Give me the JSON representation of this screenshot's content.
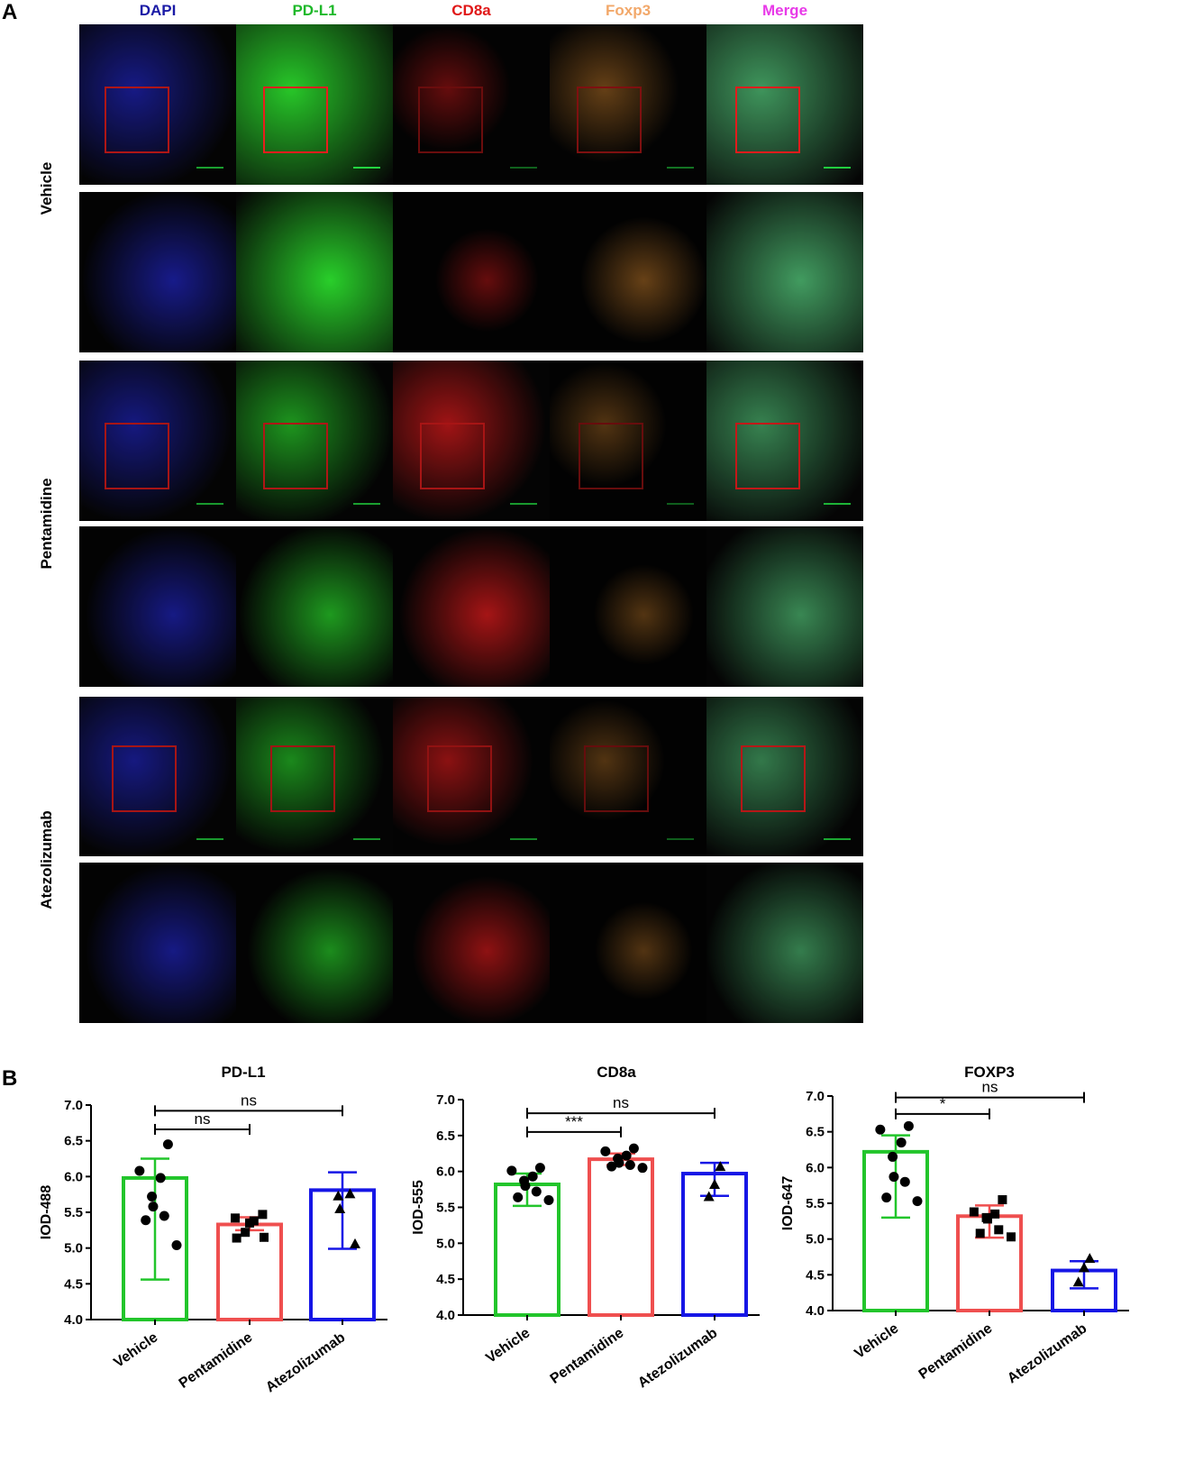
{
  "panel_a": {
    "letter": "A",
    "columns": [
      {
        "label": "DAPI",
        "color": "#1a1aa6"
      },
      {
        "label": "PD-L1",
        "color": "#1fb82a"
      },
      {
        "label": "CD8a",
        "color": "#e01818"
      },
      {
        "label": "Foxp3",
        "color": "#f2a86a"
      },
      {
        "label": "Merge",
        "color": "#e83ae8"
      }
    ],
    "rows": [
      {
        "label": "Vehicle"
      },
      {
        "label": "Pentamidine"
      },
      {
        "label": "Atezolizumab"
      }
    ]
  },
  "panel_b": {
    "letter": "B",
    "colors": {
      "Vehicle": "#22c52b",
      "Pentamidine": "#ef4f4f",
      "Atezolizumab": "#1616e6"
    }
  },
  "chart_data": [
    {
      "type": "bar",
      "title": "PD-L1",
      "ylabel": "IOD-488",
      "xlabel": "",
      "categories": [
        "Vehicle",
        "Pentamidine",
        "Atezolizumab"
      ],
      "values": [
        5.98,
        5.33,
        5.81
      ],
      "errors": [
        [
          4.56,
          6.25
        ],
        [
          5.25,
          5.43
        ],
        [
          4.99,
          6.06
        ]
      ],
      "markers": [
        "circle",
        "square",
        "triangle"
      ],
      "points": [
        [
          6.45,
          6.08,
          5.98,
          5.72,
          5.58,
          5.45,
          5.39,
          5.04
        ],
        [
          5.47,
          5.42,
          5.38,
          5.35,
          5.22,
          5.15,
          5.14
        ],
        [
          5.76,
          5.73,
          5.55,
          5.06
        ]
      ],
      "ylim": [
        4.0,
        7.0
      ],
      "yticks": [
        "4.0",
        "4.5",
        "5.0",
        "5.5",
        "6.0",
        "6.5",
        "7.0"
      ],
      "comparisons": [
        {
          "from": 0,
          "to": 1,
          "label": "ns",
          "y": 6.66
        },
        {
          "from": 0,
          "to": 2,
          "label": "ns",
          "y": 6.92
        }
      ]
    },
    {
      "type": "bar",
      "title": "CD8a",
      "ylabel": "IOD-555",
      "xlabel": "",
      "categories": [
        "Vehicle",
        "Pentamidine",
        "Atezolizumab"
      ],
      "values": [
        5.82,
        6.17,
        5.97
      ],
      "errors": [
        [
          5.52,
          5.97
        ],
        [
          6.09,
          6.25
        ],
        [
          5.66,
          6.12
        ]
      ],
      "markers": [
        "circle",
        "circle",
        "triangle"
      ],
      "points": [
        [
          6.05,
          6.01,
          5.93,
          5.87,
          5.8,
          5.72,
          5.64,
          5.6
        ],
        [
          6.32,
          6.28,
          6.22,
          6.18,
          6.12,
          6.09,
          6.07,
          6.05
        ],
        [
          6.07,
          5.82,
          5.65
        ]
      ],
      "ylim": [
        4.0,
        7.0
      ],
      "yticks": [
        "4.0",
        "4.5",
        "5.0",
        "5.5",
        "6.0",
        "6.5",
        "7.0"
      ],
      "comparisons": [
        {
          "from": 0,
          "to": 1,
          "label": "***",
          "y": 6.55
        },
        {
          "from": 0,
          "to": 2,
          "label": "ns",
          "y": 6.81
        }
      ]
    },
    {
      "type": "bar",
      "title": "FOXP3",
      "ylabel": "IOD-647",
      "xlabel": "",
      "categories": [
        "Vehicle",
        "Pentamidine",
        "Atezolizumab"
      ],
      "values": [
        6.22,
        5.32,
        4.56
      ],
      "errors": [
        [
          5.3,
          6.45
        ],
        [
          5.02,
          5.47
        ],
        [
          4.31,
          4.69
        ]
      ],
      "markers": [
        "circle",
        "square",
        "triangle"
      ],
      "points": [
        [
          6.58,
          6.53,
          6.35,
          6.15,
          5.87,
          5.8,
          5.58,
          5.53
        ],
        [
          5.55,
          5.38,
          5.35,
          5.3,
          5.28,
          5.13,
          5.08,
          5.03
        ],
        [
          4.73,
          4.6,
          4.4
        ]
      ],
      "ylim": [
        4.0,
        7.0
      ],
      "yticks": [
        "4.0",
        "4.5",
        "5.0",
        "5.5",
        "6.0",
        "6.5",
        "7.0"
      ],
      "comparisons": [
        {
          "from": 0,
          "to": 1,
          "label": "*",
          "y": 6.75
        },
        {
          "from": 0,
          "to": 2,
          "label": "ns",
          "y": 6.98
        }
      ]
    }
  ]
}
